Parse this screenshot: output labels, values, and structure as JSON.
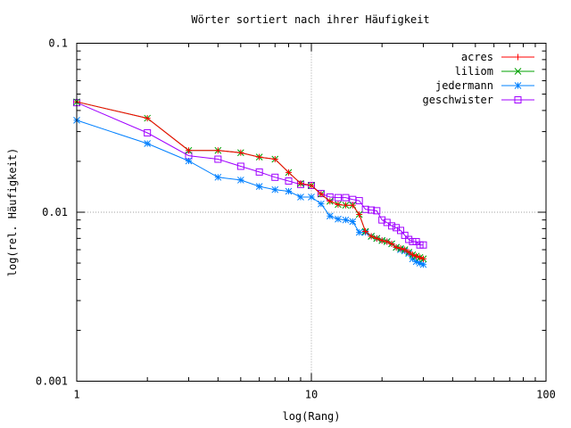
{
  "chart_data": {
    "type": "line",
    "title": "Wörter sortiert nach ihrer Häufigkeit",
    "xlabel": "log(Rang)",
    "ylabel": "log(rel. Häufigkeit)",
    "x_scale": "log",
    "y_scale": "log",
    "xlim": [
      1,
      100
    ],
    "ylim": [
      0.001,
      0.1
    ],
    "x_ticks": [
      {
        "value": 1,
        "label": "1"
      },
      {
        "value": 10,
        "label": "10"
      },
      {
        "value": 100,
        "label": "100"
      }
    ],
    "y_ticks": [
      {
        "value": 0.1,
        "label": "0.1"
      },
      {
        "value": 0.01,
        "label": "0.01"
      },
      {
        "value": 0.001,
        "label": "0.001"
      }
    ],
    "grid": "major ticks only",
    "legend_position": "top-right",
    "series": [
      {
        "name": "acres",
        "color": "#ff0000",
        "marker": "plus",
        "x": [
          1,
          2,
          3,
          4,
          5,
          6,
          7,
          8,
          9,
          10,
          11,
          12,
          13,
          14,
          15,
          16,
          17,
          18,
          19,
          20,
          21,
          22,
          23,
          24,
          25,
          26,
          27,
          28,
          29,
          30
        ],
        "y": [
          0.045,
          0.036,
          0.0232,
          0.0232,
          0.0225,
          0.0212,
          0.0206,
          0.0172,
          0.0148,
          0.0144,
          0.0128,
          0.0116,
          0.0111,
          0.011,
          0.011,
          0.0097,
          0.0077,
          0.0072,
          0.007,
          0.0068,
          0.0067,
          0.0065,
          0.0062,
          0.0061,
          0.006,
          0.0058,
          0.0056,
          0.0055,
          0.0054,
          0.0053
        ]
      },
      {
        "name": "liliom",
        "color": "#00a000",
        "marker": "cross",
        "x": [
          1,
          2,
          3,
          4,
          5,
          6,
          7,
          8,
          9,
          10,
          11,
          12,
          13,
          14,
          15,
          16,
          17,
          18,
          19,
          20,
          21,
          22,
          23,
          24,
          25,
          26,
          27,
          28,
          29,
          30
        ],
        "y": [
          0.045,
          0.036,
          0.0232,
          0.0232,
          0.0225,
          0.0212,
          0.0206,
          0.0172,
          0.0148,
          0.0144,
          0.0128,
          0.0116,
          0.0111,
          0.011,
          0.011,
          0.0097,
          0.0077,
          0.0072,
          0.007,
          0.0068,
          0.0067,
          0.0065,
          0.0062,
          0.0061,
          0.006,
          0.0058,
          0.0056,
          0.0055,
          0.0054,
          0.0053
        ]
      },
      {
        "name": "jedermann",
        "color": "#0080ff",
        "marker": "star",
        "x": [
          1,
          2,
          3,
          4,
          5,
          6,
          7,
          8,
          9,
          10,
          11,
          12,
          13,
          14,
          15,
          16,
          17,
          18,
          19,
          20,
          21,
          22,
          23,
          24,
          25,
          26,
          27,
          28,
          29,
          30
        ],
        "y": [
          0.035,
          0.0255,
          0.0201,
          0.0161,
          0.0155,
          0.0142,
          0.0136,
          0.0133,
          0.0123,
          0.0123,
          0.0112,
          0.0095,
          0.0091,
          0.009,
          0.0088,
          0.0076,
          0.0076,
          0.0072,
          0.007,
          0.0068,
          0.0067,
          0.0065,
          0.0062,
          0.006,
          0.0059,
          0.0057,
          0.0053,
          0.0051,
          0.005,
          0.0049
        ]
      },
      {
        "name": "geschwister",
        "color": "#a000ff",
        "marker": "square",
        "x": [
          1,
          2,
          3,
          4,
          5,
          6,
          7,
          8,
          9,
          10,
          11,
          12,
          13,
          14,
          15,
          16,
          17,
          18,
          19,
          20,
          21,
          22,
          23,
          24,
          25,
          26,
          27,
          28,
          29,
          30
        ],
        "y": [
          0.0445,
          0.0295,
          0.0216,
          0.0206,
          0.0187,
          0.0173,
          0.0161,
          0.0153,
          0.0146,
          0.0144,
          0.0129,
          0.0123,
          0.0122,
          0.0122,
          0.0119,
          0.0117,
          0.0104,
          0.0103,
          0.0102,
          0.009,
          0.0087,
          0.0083,
          0.0081,
          0.0078,
          0.0073,
          0.0069,
          0.0067,
          0.0067,
          0.0064,
          0.0064
        ]
      }
    ]
  }
}
